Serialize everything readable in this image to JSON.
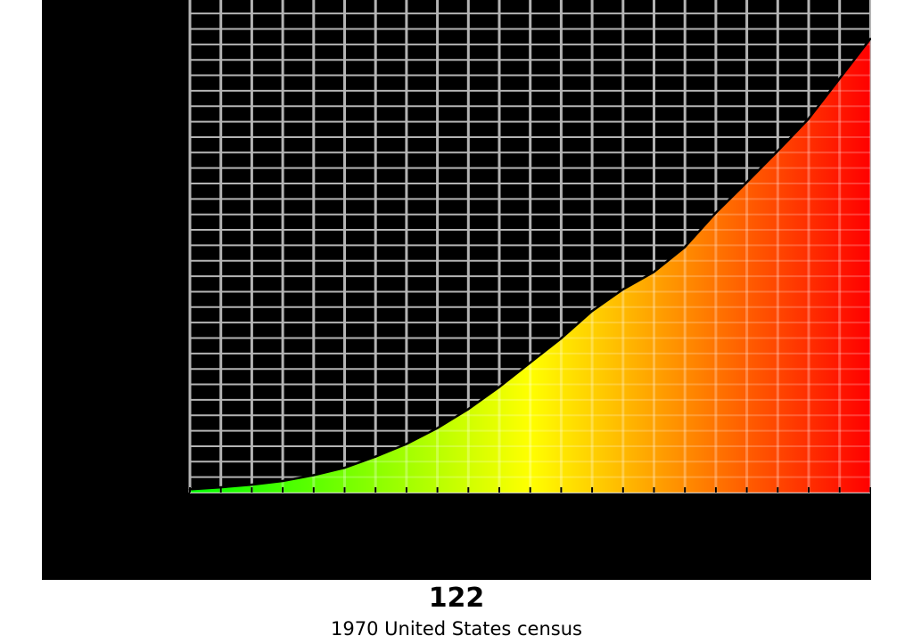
{
  "chart_data": {
    "type": "area",
    "x": [
      0,
      1,
      2,
      3,
      4,
      5,
      6,
      7,
      8,
      9,
      10,
      11,
      12,
      13,
      14,
      15,
      16,
      17,
      18,
      19,
      20,
      21,
      22
    ],
    "values": [
      0.6,
      1.0,
      1.5,
      2.2,
      3.3,
      4.7,
      6.8,
      9.2,
      12.2,
      15.8,
      20.0,
      24.6,
      29.2,
      34.4,
      38.5,
      41.8,
      46.5,
      53.0,
      58.8,
      64.7,
      70.8,
      78.4,
      86.0
    ],
    "ylim": [
      0,
      90
    ],
    "grid": true,
    "colors": {
      "background": "#000000",
      "grid": "#b4b4b4",
      "outline": "#000000",
      "gradient": [
        "#00ff00",
        "#ffff00",
        "#ff8000",
        "#ff0000"
      ]
    }
  },
  "caption": {
    "number": "122",
    "text": "1970 United States census"
  }
}
